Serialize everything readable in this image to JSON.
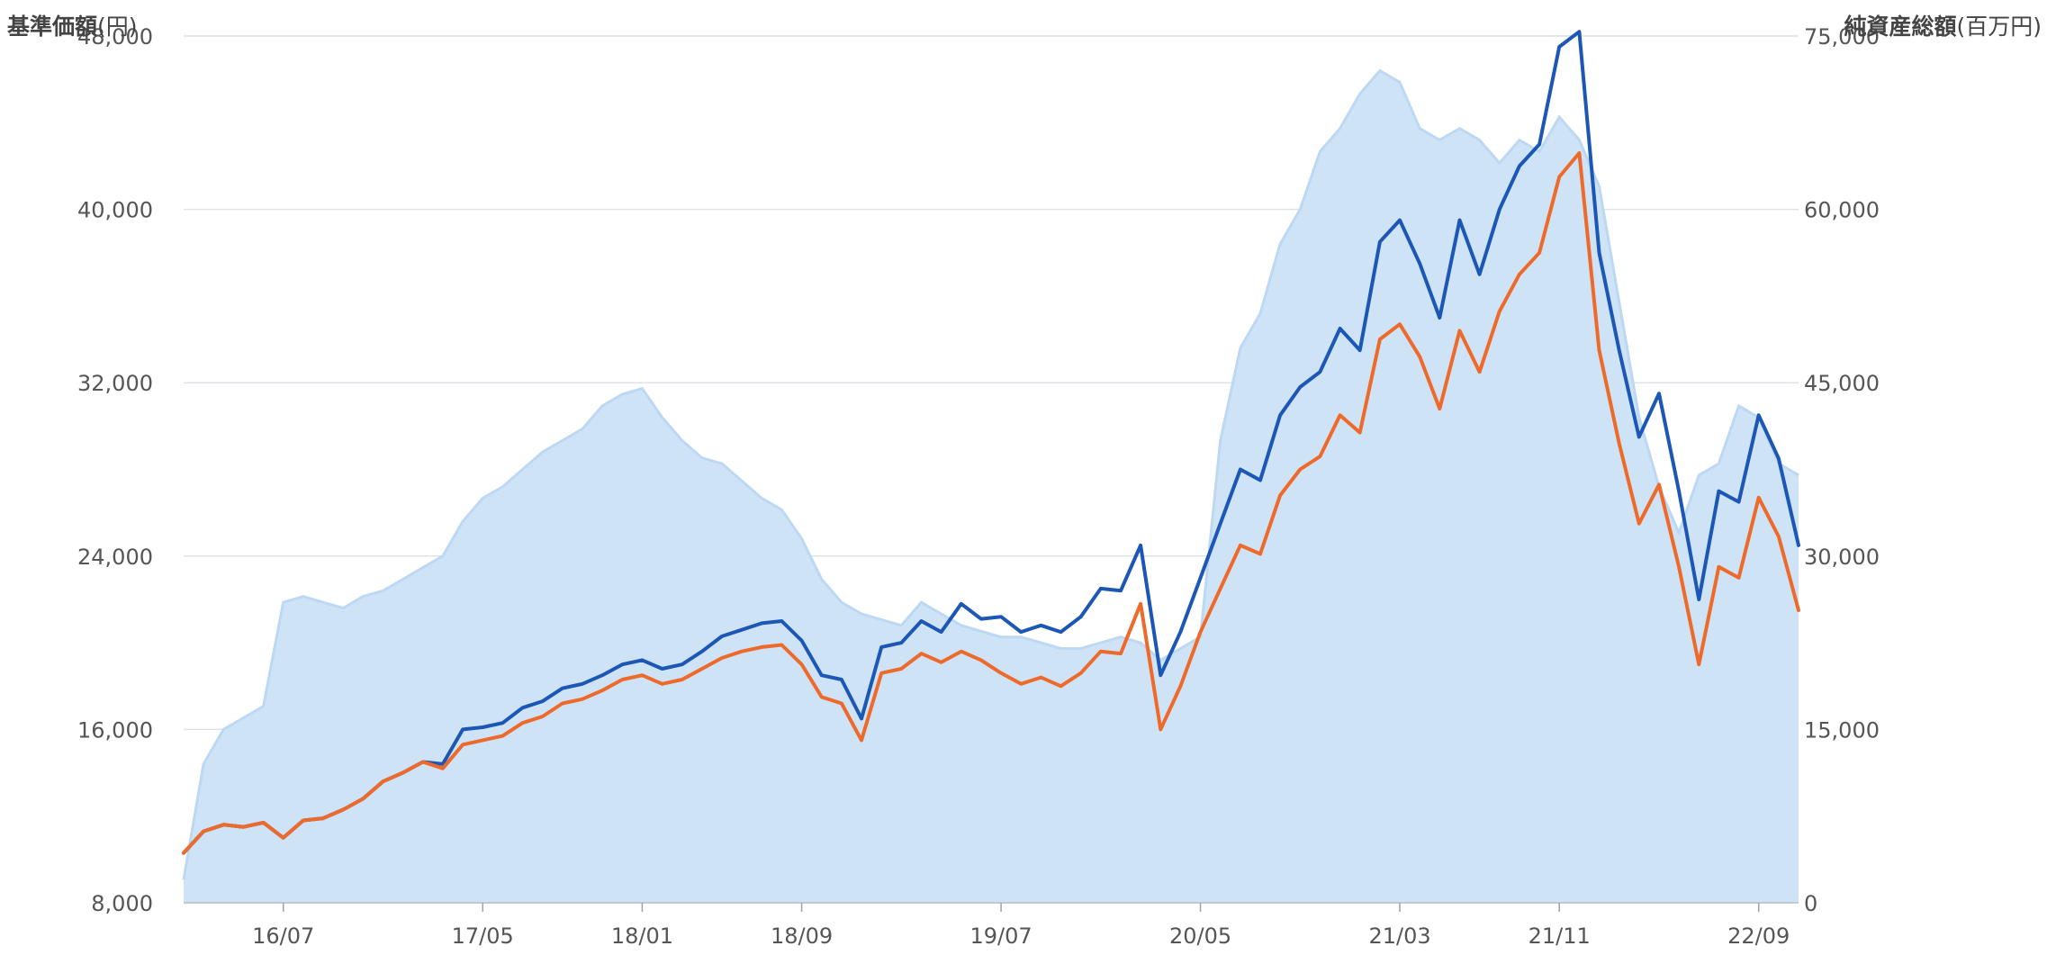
{
  "chart_data": {
    "type": "line",
    "axes": {
      "left": {
        "title": "基準価額",
        "unit": "(円)",
        "ticks": [
          "8,000",
          "16,000",
          "24,000",
          "32,000",
          "40,000",
          "48,000"
        ],
        "tick_values": [
          8000,
          16000,
          24000,
          32000,
          40000,
          48000
        ],
        "range": [
          8000,
          48000
        ]
      },
      "right": {
        "title": "純資産総額",
        "unit": "(百万円)",
        "ticks": [
          "0",
          "15,000",
          "30,000",
          "45,000",
          "60,000",
          "75,000"
        ],
        "tick_values": [
          0,
          15000,
          30000,
          45000,
          60000,
          75000
        ],
        "range": [
          0,
          75000
        ]
      },
      "x": {
        "ticks": [
          "16/07",
          "17/05",
          "18/01",
          "18/09",
          "19/07",
          "20/05",
          "21/03",
          "21/11",
          "22/09"
        ],
        "tick_dates": [
          "2016-07",
          "2017-05",
          "2018-01",
          "2018-09",
          "2019-07",
          "2020-05",
          "2021-03",
          "2021-11",
          "2022-09"
        ],
        "range": [
          "2016-02",
          "2022-11"
        ]
      }
    },
    "grid": true,
    "colors": {
      "net_assets_fill": "#cfe3f7",
      "net_assets_edge": "#bcd8f3",
      "series_a": "#1c57b6",
      "series_b": "#ee6a2b",
      "grid": "#dfe3e8"
    },
    "series": [
      {
        "key": "net_assets",
        "kind": "area",
        "axis": "right",
        "x": [
          "2016-02",
          "2016-03",
          "2016-04",
          "2016-05",
          "2016-06",
          "2016-07",
          "2016-08",
          "2016-09",
          "2016-10",
          "2016-11",
          "2016-12",
          "2017-01",
          "2017-02",
          "2017-03",
          "2017-04",
          "2017-05",
          "2017-06",
          "2017-07",
          "2017-08",
          "2017-09",
          "2017-10",
          "2017-11",
          "2017-12",
          "2018-01",
          "2018-02",
          "2018-03",
          "2018-04",
          "2018-05",
          "2018-06",
          "2018-07",
          "2018-08",
          "2018-09",
          "2018-10",
          "2018-11",
          "2018-12",
          "2019-01",
          "2019-02",
          "2019-03",
          "2019-04",
          "2019-05",
          "2019-06",
          "2019-07",
          "2019-08",
          "2019-09",
          "2019-10",
          "2019-11",
          "2019-12",
          "2020-01",
          "2020-02",
          "2020-03",
          "2020-04",
          "2020-05",
          "2020-06",
          "2020-07",
          "2020-08",
          "2020-09",
          "2020-10",
          "2020-11",
          "2020-12",
          "2021-01",
          "2021-02",
          "2021-03",
          "2021-04",
          "2021-05",
          "2021-06",
          "2021-07",
          "2021-08",
          "2021-09",
          "2021-10",
          "2021-11",
          "2021-12",
          "2022-01",
          "2022-02",
          "2022-03",
          "2022-04",
          "2022-05",
          "2022-06",
          "2022-07",
          "2022-08",
          "2022-09",
          "2022-10",
          "2022-11"
        ],
        "values": [
          2000,
          12000,
          15000,
          16000,
          17000,
          26000,
          26500,
          26000,
          25500,
          26500,
          27000,
          28000,
          29000,
          30000,
          33000,
          35000,
          36000,
          37500,
          39000,
          40000,
          41000,
          43000,
          44000,
          44500,
          42000,
          40000,
          38500,
          38000,
          36500,
          35000,
          34000,
          31500,
          28000,
          26000,
          25000,
          24500,
          24000,
          26000,
          25000,
          24000,
          23500,
          23000,
          23000,
          22500,
          22000,
          22000,
          22500,
          23000,
          22500,
          21000,
          22000,
          23000,
          40000,
          48000,
          51000,
          57000,
          60000,
          65000,
          67000,
          70000,
          72000,
          71000,
          67000,
          66000,
          67000,
          66000,
          64000,
          66000,
          65000,
          68000,
          66000,
          62000,
          52000,
          42000,
          36000,
          32000,
          37000,
          38000,
          43000,
          42000,
          38000,
          37000
        ]
      },
      {
        "key": "series_a",
        "kind": "line",
        "axis": "left",
        "x": [
          "2016-02",
          "2016-03",
          "2016-04",
          "2016-05",
          "2016-06",
          "2016-07",
          "2016-08",
          "2016-09",
          "2016-10",
          "2016-11",
          "2016-12",
          "2017-01",
          "2017-02",
          "2017-03",
          "2017-04",
          "2017-05",
          "2017-06",
          "2017-07",
          "2017-08",
          "2017-09",
          "2017-10",
          "2017-11",
          "2017-12",
          "2018-01",
          "2018-02",
          "2018-03",
          "2018-04",
          "2018-05",
          "2018-06",
          "2018-07",
          "2018-08",
          "2018-09",
          "2018-10",
          "2018-11",
          "2018-12",
          "2019-01",
          "2019-02",
          "2019-03",
          "2019-04",
          "2019-05",
          "2019-06",
          "2019-07",
          "2019-08",
          "2019-09",
          "2019-10",
          "2019-11",
          "2019-12",
          "2020-01",
          "2020-02",
          "2020-03",
          "2020-04",
          "2020-05",
          "2020-06",
          "2020-07",
          "2020-08",
          "2020-09",
          "2020-10",
          "2020-11",
          "2020-12",
          "2021-01",
          "2021-02",
          "2021-03",
          "2021-04",
          "2021-05",
          "2021-06",
          "2021-07",
          "2021-08",
          "2021-09",
          "2021-10",
          "2021-11",
          "2021-12",
          "2022-01",
          "2022-02",
          "2022-03",
          "2022-04",
          "2022-05",
          "2022-06",
          "2022-07",
          "2022-08",
          "2022-09",
          "2022-10",
          "2022-11"
        ],
        "values": [
          10300,
          11300,
          11600,
          11500,
          11700,
          11000,
          11800,
          11900,
          12300,
          12800,
          13600,
          14000,
          14500,
          14400,
          16000,
          16100,
          16300,
          17000,
          17300,
          17900,
          18100,
          18500,
          19000,
          19200,
          18800,
          19000,
          19600,
          20300,
          20600,
          20900,
          21000,
          20100,
          18500,
          18300,
          16500,
          19800,
          20000,
          21000,
          20500,
          21800,
          21100,
          21200,
          20500,
          20800,
          20500,
          21200,
          22500,
          22400,
          24500,
          18500,
          20500,
          23000,
          25500,
          28000,
          27500,
          30500,
          31800,
          32500,
          34500,
          33500,
          38500,
          39500,
          37500,
          35000,
          39500,
          37000,
          40000,
          42000,
          43000,
          47500,
          48200,
          38000,
          33500,
          29500,
          31500,
          27000,
          22000,
          27000,
          26500,
          30500,
          28500,
          24500
        ]
      },
      {
        "key": "series_b",
        "kind": "line",
        "axis": "left",
        "x": [
          "2016-02",
          "2016-03",
          "2016-04",
          "2016-05",
          "2016-06",
          "2016-07",
          "2016-08",
          "2016-09",
          "2016-10",
          "2016-11",
          "2016-12",
          "2017-01",
          "2017-02",
          "2017-03",
          "2017-04",
          "2017-05",
          "2017-06",
          "2017-07",
          "2017-08",
          "2017-09",
          "2017-10",
          "2017-11",
          "2017-12",
          "2018-01",
          "2018-02",
          "2018-03",
          "2018-04",
          "2018-05",
          "2018-06",
          "2018-07",
          "2018-08",
          "2018-09",
          "2018-10",
          "2018-11",
          "2018-12",
          "2019-01",
          "2019-02",
          "2019-03",
          "2019-04",
          "2019-05",
          "2019-06",
          "2019-07",
          "2019-08",
          "2019-09",
          "2019-10",
          "2019-11",
          "2019-12",
          "2020-01",
          "2020-02",
          "2020-03",
          "2020-04",
          "2020-05",
          "2020-06",
          "2020-07",
          "2020-08",
          "2020-09",
          "2020-10",
          "2020-11",
          "2020-12",
          "2021-01",
          "2021-02",
          "2021-03",
          "2021-04",
          "2021-05",
          "2021-06",
          "2021-07",
          "2021-08",
          "2021-09",
          "2021-10",
          "2021-11",
          "2021-12",
          "2022-01",
          "2022-02",
          "2022-03",
          "2022-04",
          "2022-05",
          "2022-06",
          "2022-07",
          "2022-08",
          "2022-09",
          "2022-10",
          "2022-11"
        ],
        "values": [
          10300,
          11300,
          11600,
          11500,
          11700,
          11000,
          11800,
          11900,
          12300,
          12800,
          13600,
          14000,
          14500,
          14200,
          15300,
          15500,
          15700,
          16300,
          16600,
          17200,
          17400,
          17800,
          18300,
          18500,
          18100,
          18300,
          18800,
          19300,
          19600,
          19800,
          19900,
          19000,
          17500,
          17200,
          15500,
          18600,
          18800,
          19500,
          19100,
          19600,
          19200,
          18600,
          18100,
          18400,
          18000,
          18600,
          19600,
          19500,
          21800,
          16000,
          18000,
          20500,
          22500,
          24500,
          24100,
          26800,
          28000,
          28600,
          30500,
          29700,
          34000,
          34700,
          33200,
          30800,
          34400,
          32500,
          35300,
          37000,
          38000,
          41500,
          42600,
          33500,
          29200,
          25500,
          27300,
          23500,
          19000,
          23500,
          23000,
          26700,
          24900,
          21500
        ]
      }
    ]
  }
}
